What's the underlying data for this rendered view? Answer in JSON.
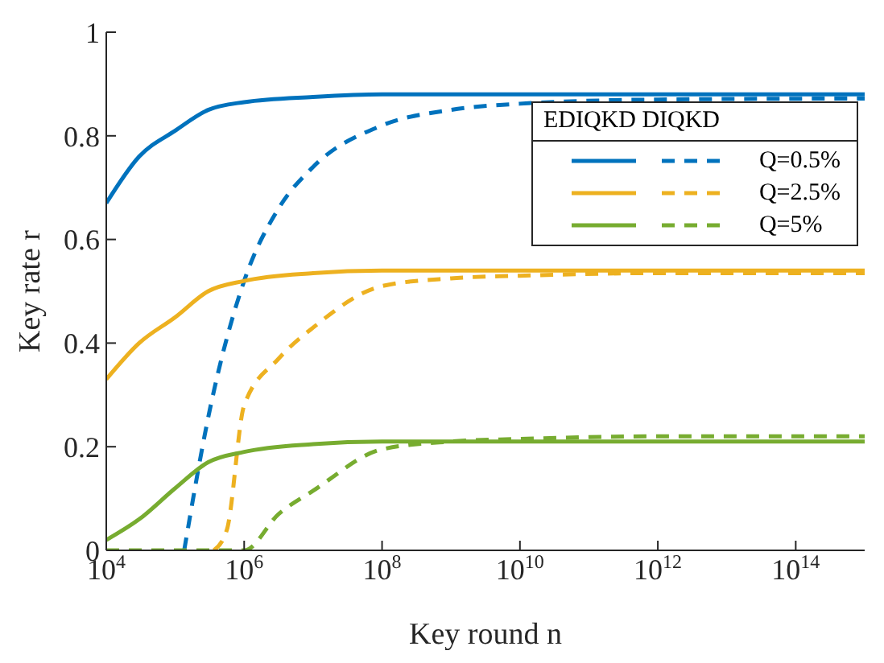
{
  "chart_data": {
    "type": "line",
    "xlabel": "Key round n",
    "ylabel": "Key rate r",
    "legend_title": "EDIQKD DIQKD",
    "legend": "top right",
    "log": "x",
    "grid": false,
    "marker": "none",
    "xlim": [
      10000,
      1000000000000000
    ],
    "xticks": [
      {
        "value": 10000,
        "label": "10$^{4}$"
      },
      {
        "value": 1000000,
        "label": "10$^{6}$"
      },
      {
        "value": 100000000,
        "label": "10$^{8}$"
      },
      {
        "value": 10000000000,
        "label": "10$^{10}$"
      },
      {
        "value": 1000000000000,
        "label": "10$^{12}$"
      },
      {
        "value": 100000000000000,
        "label": "10$^{14}$"
      }
    ],
    "ylim": [
      0,
      1
    ],
    "yticks": [
      0,
      0.2,
      0.4,
      0.6,
      0.8,
      1
    ],
    "series": [
      {
        "color": "#0072bd",
        "line_style": "solid",
        "x": [
          10000,
          30000,
          100000,
          300000,
          1000000,
          10000000,
          100000000,
          1000000000000000
        ],
        "values": [
          0.67,
          0.76,
          0.81,
          0.85,
          0.865,
          0.875,
          0.88,
          0.88
        ]
      },
      {
        "name": "Q=0.5%",
        "color": "#0072bd",
        "line_style": "dashed",
        "x": [
          135000,
          316000,
          1000000,
          3160000,
          10000000,
          100000000,
          1000000000,
          10000000000,
          1000000000000,
          1000000000000000
        ],
        "values": [
          0,
          0.27,
          0.52,
          0.66,
          0.74,
          0.82,
          0.85,
          0.862,
          0.87,
          0.872
        ]
      },
      {
        "color": "#edb120",
        "line_style": "solid",
        "x": [
          10000,
          30000,
          100000,
          300000,
          1000000,
          10000000,
          100000000,
          1000000000000000
        ],
        "values": [
          0.33,
          0.4,
          0.45,
          0.5,
          0.52,
          0.535,
          0.54,
          0.54
        ]
      },
      {
        "name": "Q=2.5%",
        "color": "#edb120",
        "line_style": "dashed",
        "x": [
          363000,
          562000,
          1000000,
          3160000,
          10000000,
          100000000,
          1000000000,
          10000000000,
          1000000000000,
          1000000000000000
        ],
        "values": [
          0,
          0.04,
          0.28,
          0.37,
          0.43,
          0.51,
          0.525,
          0.53,
          0.535,
          0.535
        ]
      },
      {
        "color": "#77ac30",
        "line_style": "solid",
        "x": [
          10000,
          30000,
          100000,
          300000,
          1000000,
          10000000,
          100000000,
          1000000000000000
        ],
        "values": [
          0.02,
          0.06,
          0.12,
          0.17,
          0.19,
          0.205,
          0.21,
          0.21
        ]
      },
      {
        "name": "Q=5%",
        "color": "#77ac30",
        "line_style": "dashed",
        "x": [
          10000,
          1000000,
          3160000,
          10000000,
          100000000,
          1000000000,
          10000000000,
          1000000000000,
          1000000000000000
        ],
        "values": [
          0,
          0,
          0.07,
          0.115,
          0.195,
          0.21,
          0.215,
          0.22,
          0.22
        ]
      }
    ]
  }
}
